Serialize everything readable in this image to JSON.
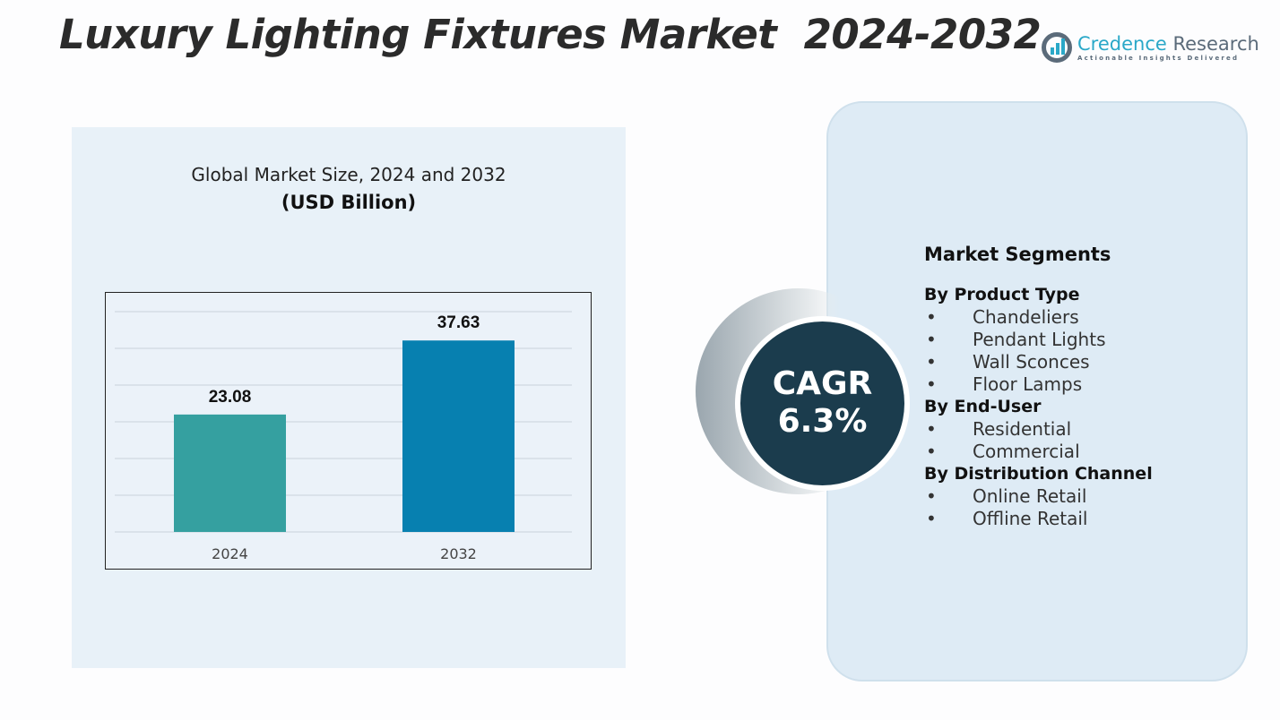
{
  "title": "Luxury Lighting Fixtures Market  2024-2032",
  "logo": {
    "name_part1": "Credence",
    "name_part2": "Research",
    "tagline": "Actionable Insights Delivered"
  },
  "chart_data": {
    "type": "bar",
    "title": "Global Market Size, 2024 and 2032",
    "ylabel": "(USD Billion)",
    "categories": [
      "2024",
      "2032"
    ],
    "values": [
      23.08,
      37.63
    ],
    "value_labels": [
      "23.08",
      "37.63"
    ],
    "colors": [
      "#35a0a0",
      "#0780b0"
    ],
    "ylim": [
      0,
      43.3
    ],
    "grid": true
  },
  "cagr": {
    "label": "CAGR",
    "value": "6.3%"
  },
  "segments": {
    "heading": "Market Segments",
    "groups": [
      {
        "name": "By Product Type",
        "items": [
          "Chandeliers",
          "Pendant Lights",
          "Wall Sconces",
          "Floor Lamps"
        ]
      },
      {
        "name": "By End-User",
        "items": [
          "Residential",
          "Commercial"
        ]
      },
      {
        "name": "By Distribution Channel",
        "items": [
          "Online Retail",
          "Offline Retail"
        ]
      }
    ],
    "bullet": "•"
  }
}
